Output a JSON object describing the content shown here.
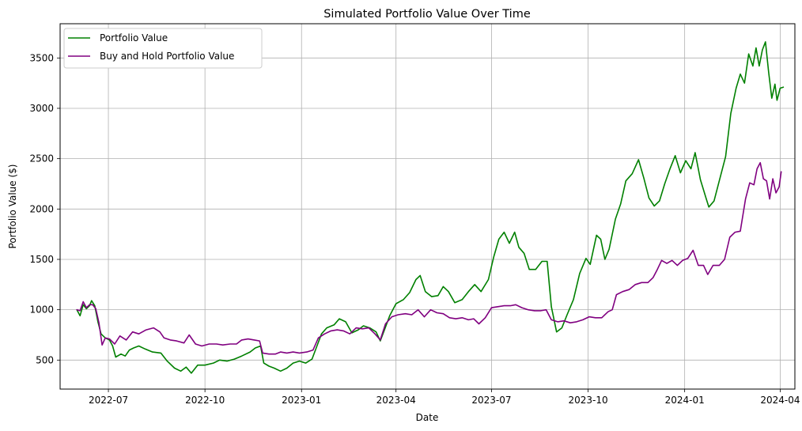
{
  "chart_data": {
    "type": "line",
    "title": "Simulated Portfolio Value Over Time",
    "xlabel": "Date",
    "ylabel": "Portfolio Value ($)",
    "xlim": [
      "2022-05-16",
      "2024-04-15"
    ],
    "ylim": [
      212,
      3840
    ],
    "grid": true,
    "legend_position": "top-left",
    "x_ticks": [
      "2022-07",
      "2022-10",
      "2023-01",
      "2023-04",
      "2023-07",
      "2023-10",
      "2024-01",
      "2024-04"
    ],
    "y_ticks": [
      500,
      1000,
      1500,
      2000,
      2500,
      3000,
      3500
    ],
    "series": [
      {
        "name": "Portfolio Value",
        "color": "#008000",
        "points": [
          [
            "2022-06-01",
            1000
          ],
          [
            "2022-06-04",
            940
          ],
          [
            "2022-06-07",
            1050
          ],
          [
            "2022-06-10",
            1010
          ],
          [
            "2022-06-13",
            1040
          ],
          [
            "2022-06-15",
            1090
          ],
          [
            "2022-06-18",
            1040
          ],
          [
            "2022-06-21",
            880
          ],
          [
            "2022-06-24",
            760
          ],
          [
            "2022-06-28",
            720
          ],
          [
            "2022-07-02",
            700
          ],
          [
            "2022-07-05",
            640
          ],
          [
            "2022-07-08",
            530
          ],
          [
            "2022-07-13",
            560
          ],
          [
            "2022-07-17",
            540
          ],
          [
            "2022-07-21",
            600
          ],
          [
            "2022-07-25",
            620
          ],
          [
            "2022-07-30",
            640
          ],
          [
            "2022-08-05",
            610
          ],
          [
            "2022-08-12",
            580
          ],
          [
            "2022-08-20",
            570
          ],
          [
            "2022-08-26",
            490
          ],
          [
            "2022-09-02",
            420
          ],
          [
            "2022-09-08",
            390
          ],
          [
            "2022-09-13",
            430
          ],
          [
            "2022-09-18",
            370
          ],
          [
            "2022-09-24",
            450
          ],
          [
            "2022-10-01",
            450
          ],
          [
            "2022-10-09",
            470
          ],
          [
            "2022-10-15",
            500
          ],
          [
            "2022-10-22",
            490
          ],
          [
            "2022-10-29",
            510
          ],
          [
            "2022-11-05",
            540
          ],
          [
            "2022-11-13",
            580
          ],
          [
            "2022-11-18",
            620
          ],
          [
            "2022-11-23",
            640
          ],
          [
            "2022-11-26",
            470
          ],
          [
            "2022-12-01",
            440
          ],
          [
            "2022-12-06",
            420
          ],
          [
            "2022-12-12",
            390
          ],
          [
            "2022-12-18",
            420
          ],
          [
            "2022-12-24",
            470
          ],
          [
            "2022-12-30",
            490
          ],
          [
            "2023-01-05",
            470
          ],
          [
            "2023-01-11",
            510
          ],
          [
            "2023-01-15",
            620
          ],
          [
            "2023-01-20",
            760
          ],
          [
            "2023-01-25",
            820
          ],
          [
            "2023-02-01",
            850
          ],
          [
            "2023-02-06",
            910
          ],
          [
            "2023-02-12",
            880
          ],
          [
            "2023-02-18",
            770
          ],
          [
            "2023-02-24",
            800
          ],
          [
            "2023-03-01",
            840
          ],
          [
            "2023-03-07",
            820
          ],
          [
            "2023-03-13",
            780
          ],
          [
            "2023-03-17",
            690
          ],
          [
            "2023-03-21",
            800
          ],
          [
            "2023-03-26",
            940
          ],
          [
            "2023-04-01",
            1060
          ],
          [
            "2023-04-08",
            1100
          ],
          [
            "2023-04-14",
            1170
          ],
          [
            "2023-04-20",
            1300
          ],
          [
            "2023-04-24",
            1340
          ],
          [
            "2023-04-29",
            1180
          ],
          [
            "2023-05-05",
            1130
          ],
          [
            "2023-05-11",
            1140
          ],
          [
            "2023-05-16",
            1230
          ],
          [
            "2023-05-21",
            1180
          ],
          [
            "2023-05-27",
            1070
          ],
          [
            "2023-06-03",
            1100
          ],
          [
            "2023-06-09",
            1180
          ],
          [
            "2023-06-15",
            1250
          ],
          [
            "2023-06-21",
            1180
          ],
          [
            "2023-06-28",
            1300
          ],
          [
            "2023-07-03",
            1520
          ],
          [
            "2023-07-08",
            1700
          ],
          [
            "2023-07-13",
            1770
          ],
          [
            "2023-07-18",
            1660
          ],
          [
            "2023-07-23",
            1770
          ],
          [
            "2023-07-27",
            1620
          ],
          [
            "2023-08-01",
            1560
          ],
          [
            "2023-08-06",
            1400
          ],
          [
            "2023-08-12",
            1400
          ],
          [
            "2023-08-18",
            1480
          ],
          [
            "2023-08-23",
            1480
          ],
          [
            "2023-08-27",
            1030
          ],
          [
            "2023-09-01",
            780
          ],
          [
            "2023-09-06",
            820
          ],
          [
            "2023-09-11",
            950
          ],
          [
            "2023-09-17",
            1100
          ],
          [
            "2023-09-23",
            1360
          ],
          [
            "2023-09-29",
            1510
          ],
          [
            "2023-10-03",
            1450
          ],
          [
            "2023-10-09",
            1740
          ],
          [
            "2023-10-13",
            1700
          ],
          [
            "2023-10-17",
            1500
          ],
          [
            "2023-10-21",
            1600
          ],
          [
            "2023-10-27",
            1900
          ],
          [
            "2023-11-01",
            2050
          ],
          [
            "2023-11-06",
            2280
          ],
          [
            "2023-11-12",
            2350
          ],
          [
            "2023-11-18",
            2490
          ],
          [
            "2023-11-23",
            2310
          ],
          [
            "2023-11-28",
            2110
          ],
          [
            "2023-12-03",
            2030
          ],
          [
            "2023-12-08",
            2080
          ],
          [
            "2023-12-13",
            2250
          ],
          [
            "2023-12-18",
            2400
          ],
          [
            "2023-12-23",
            2530
          ],
          [
            "2023-12-28",
            2360
          ],
          [
            "2024-01-02",
            2480
          ],
          [
            "2024-01-07",
            2400
          ],
          [
            "2024-01-11",
            2560
          ],
          [
            "2024-01-16",
            2290
          ],
          [
            "2024-01-21",
            2120
          ],
          [
            "2024-01-24",
            2020
          ],
          [
            "2024-01-29",
            2080
          ],
          [
            "2024-02-03",
            2280
          ],
          [
            "2024-02-09",
            2520
          ],
          [
            "2024-02-14",
            2950
          ],
          [
            "2024-02-19",
            3200
          ],
          [
            "2024-02-23",
            3340
          ],
          [
            "2024-02-27",
            3250
          ],
          [
            "2024-03-02",
            3540
          ],
          [
            "2024-03-06",
            3420
          ],
          [
            "2024-03-09",
            3600
          ],
          [
            "2024-03-12",
            3420
          ],
          [
            "2024-03-15",
            3580
          ],
          [
            "2024-03-18",
            3660
          ],
          [
            "2024-03-21",
            3360
          ],
          [
            "2024-03-24",
            3100
          ],
          [
            "2024-03-27",
            3240
          ],
          [
            "2024-03-29",
            3080
          ],
          [
            "2024-04-01",
            3200
          ],
          [
            "2024-04-04",
            3210
          ]
        ]
      },
      {
        "name": "Buy and Hold Portfolio Value",
        "color": "#800080",
        "points": [
          [
            "2022-06-01",
            1000
          ],
          [
            "2022-06-04",
            990
          ],
          [
            "2022-06-07",
            1080
          ],
          [
            "2022-06-10",
            1020
          ],
          [
            "2022-06-13",
            1050
          ],
          [
            "2022-06-16",
            1050
          ],
          [
            "2022-06-19",
            1010
          ],
          [
            "2022-06-22",
            870
          ],
          [
            "2022-06-25",
            650
          ],
          [
            "2022-06-28",
            720
          ],
          [
            "2022-07-02",
            710
          ],
          [
            "2022-07-07",
            660
          ],
          [
            "2022-07-12",
            740
          ],
          [
            "2022-07-18",
            700
          ],
          [
            "2022-07-24",
            780
          ],
          [
            "2022-07-30",
            760
          ],
          [
            "2022-08-06",
            800
          ],
          [
            "2022-08-13",
            820
          ],
          [
            "2022-08-19",
            780
          ],
          [
            "2022-08-23",
            720
          ],
          [
            "2022-08-29",
            700
          ],
          [
            "2022-09-04",
            690
          ],
          [
            "2022-09-11",
            670
          ],
          [
            "2022-09-16",
            750
          ],
          [
            "2022-09-22",
            660
          ],
          [
            "2022-09-28",
            640
          ],
          [
            "2022-10-05",
            660
          ],
          [
            "2022-10-12",
            660
          ],
          [
            "2022-10-18",
            650
          ],
          [
            "2022-10-25",
            660
          ],
          [
            "2022-10-31",
            660
          ],
          [
            "2022-11-05",
            700
          ],
          [
            "2022-11-11",
            710
          ],
          [
            "2022-11-17",
            700
          ],
          [
            "2022-11-22",
            690
          ],
          [
            "2022-11-25",
            570
          ],
          [
            "2022-12-01",
            560
          ],
          [
            "2022-12-07",
            560
          ],
          [
            "2022-12-12",
            580
          ],
          [
            "2022-12-18",
            570
          ],
          [
            "2022-12-24",
            580
          ],
          [
            "2022-12-30",
            570
          ],
          [
            "2023-01-06",
            580
          ],
          [
            "2023-01-12",
            600
          ],
          [
            "2023-01-17",
            720
          ],
          [
            "2023-01-23",
            760
          ],
          [
            "2023-01-29",
            790
          ],
          [
            "2023-02-04",
            800
          ],
          [
            "2023-02-10",
            790
          ],
          [
            "2023-02-16",
            760
          ],
          [
            "2023-02-22",
            820
          ],
          [
            "2023-02-28",
            810
          ],
          [
            "2023-03-06",
            820
          ],
          [
            "2023-03-12",
            760
          ],
          [
            "2023-03-17",
            700
          ],
          [
            "2023-03-22",
            860
          ],
          [
            "2023-03-28",
            930
          ],
          [
            "2023-04-03",
            950
          ],
          [
            "2023-04-10",
            960
          ],
          [
            "2023-04-16",
            950
          ],
          [
            "2023-04-22",
            1000
          ],
          [
            "2023-04-28",
            930
          ],
          [
            "2023-05-04",
            1000
          ],
          [
            "2023-05-10",
            970
          ],
          [
            "2023-05-16",
            960
          ],
          [
            "2023-05-22",
            920
          ],
          [
            "2023-05-28",
            910
          ],
          [
            "2023-06-03",
            920
          ],
          [
            "2023-06-09",
            900
          ],
          [
            "2023-06-14",
            910
          ],
          [
            "2023-06-19",
            860
          ],
          [
            "2023-06-25",
            920
          ],
          [
            "2023-07-01",
            1020
          ],
          [
            "2023-07-07",
            1030
          ],
          [
            "2023-07-13",
            1040
          ],
          [
            "2023-07-19",
            1040
          ],
          [
            "2023-07-24",
            1050
          ],
          [
            "2023-07-30",
            1020
          ],
          [
            "2023-08-05",
            1000
          ],
          [
            "2023-08-11",
            990
          ],
          [
            "2023-08-17",
            990
          ],
          [
            "2023-08-22",
            1000
          ],
          [
            "2023-08-27",
            900
          ],
          [
            "2023-09-02",
            880
          ],
          [
            "2023-09-08",
            890
          ],
          [
            "2023-09-14",
            870
          ],
          [
            "2023-09-20",
            880
          ],
          [
            "2023-09-26",
            900
          ],
          [
            "2023-10-02",
            930
          ],
          [
            "2023-10-08",
            920
          ],
          [
            "2023-10-14",
            920
          ],
          [
            "2023-10-20",
            980
          ],
          [
            "2023-10-24",
            1000
          ],
          [
            "2023-10-28",
            1150
          ],
          [
            "2023-11-03",
            1180
          ],
          [
            "2023-11-09",
            1200
          ],
          [
            "2023-11-15",
            1250
          ],
          [
            "2023-11-21",
            1270
          ],
          [
            "2023-11-27",
            1270
          ],
          [
            "2023-12-02",
            1320
          ],
          [
            "2023-12-06",
            1400
          ],
          [
            "2023-12-10",
            1490
          ],
          [
            "2023-12-15",
            1460
          ],
          [
            "2023-12-20",
            1490
          ],
          [
            "2023-12-25",
            1440
          ],
          [
            "2023-12-30",
            1490
          ],
          [
            "2024-01-04",
            1510
          ],
          [
            "2024-01-09",
            1590
          ],
          [
            "2024-01-14",
            1440
          ],
          [
            "2024-01-19",
            1440
          ],
          [
            "2024-01-23",
            1350
          ],
          [
            "2024-01-28",
            1440
          ],
          [
            "2024-02-03",
            1440
          ],
          [
            "2024-02-08",
            1500
          ],
          [
            "2024-02-13",
            1720
          ],
          [
            "2024-02-18",
            1770
          ],
          [
            "2024-02-23",
            1780
          ],
          [
            "2024-02-28",
            2100
          ],
          [
            "2024-03-03",
            2260
          ],
          [
            "2024-03-07",
            2240
          ],
          [
            "2024-03-10",
            2400
          ],
          [
            "2024-03-13",
            2460
          ],
          [
            "2024-03-16",
            2300
          ],
          [
            "2024-03-19",
            2280
          ],
          [
            "2024-03-22",
            2100
          ],
          [
            "2024-03-25",
            2300
          ],
          [
            "2024-03-28",
            2160
          ],
          [
            "2024-03-31",
            2220
          ],
          [
            "2024-04-02",
            2370
          ]
        ]
      }
    ]
  }
}
